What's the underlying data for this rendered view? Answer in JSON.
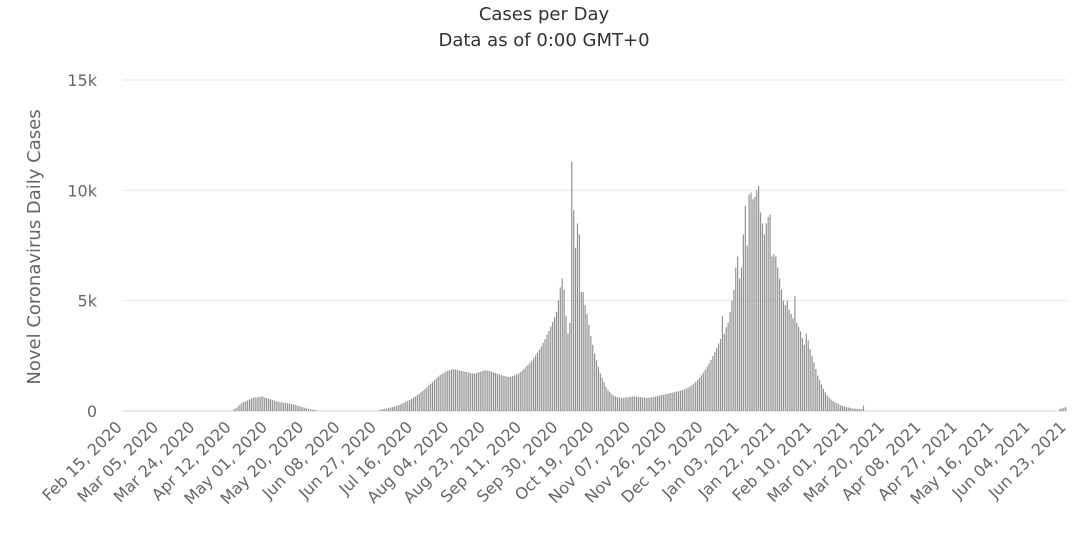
{
  "chart_data": {
    "type": "bar",
    "title": "Cases per Day",
    "subtitle": "Data as of 0:00 GMT+0",
    "ylabel": "Novel Coronavirus Daily Cases",
    "xlabel": "",
    "ylim": [
      0,
      15000
    ],
    "yticks": [
      "0",
      "5k",
      "10k",
      "15k"
    ],
    "ytick_values": [
      0,
      5000,
      10000,
      15000
    ],
    "x_start": "2020-02-15",
    "x_end": "2021-06-23",
    "xticks": [
      "Feb 15, 2020",
      "Mar 05, 2020",
      "Mar 24, 2020",
      "Apr 12, 2020",
      "May 01, 2020",
      "May 20, 2020",
      "Jun 08, 2020",
      "Jun 27, 2020",
      "Jul 16, 2020",
      "Aug 04, 2020",
      "Aug 23, 2020",
      "Sep 11, 2020",
      "Sep 30, 2020",
      "Oct 19, 2020",
      "Nov 07, 2020",
      "Nov 26, 2020",
      "Dec 15, 2020",
      "Jan 03, 2021",
      "Jan 22, 2021",
      "Feb 10, 2021",
      "Mar 01, 2021",
      "Mar 20, 2021",
      "Apr 08, 2021",
      "Apr 27, 2021",
      "May 16, 2021",
      "Jun 04, 2021",
      "Jun 23, 2021"
    ],
    "grid": true,
    "legend": "none",
    "bar_color": "#909090",
    "series": [
      {
        "values": [
          0,
          0,
          0,
          0,
          0,
          0,
          0,
          0,
          0,
          0,
          0,
          0,
          0,
          0,
          0,
          0,
          0,
          0,
          0,
          0,
          0,
          0,
          0,
          0,
          0,
          0,
          0,
          0,
          0,
          0,
          0,
          0,
          0,
          0,
          0,
          0,
          0,
          0,
          0,
          0,
          0,
          0,
          0,
          0,
          0,
          0,
          0,
          0,
          0,
          0,
          0,
          0,
          0,
          0,
          0,
          0,
          0,
          0,
          90,
          130,
          210,
          280,
          360,
          410,
          440,
          480,
          520,
          560,
          600,
          620,
          610,
          640,
          650,
          660,
          600,
          590,
          560,
          540,
          500,
          470,
          440,
          420,
          400,
          390,
          380,
          360,
          350,
          340,
          320,
          300,
          280,
          250,
          220,
          200,
          180,
          150,
          120,
          100,
          80,
          60,
          40,
          30,
          0,
          0,
          0,
          0,
          0,
          0,
          0,
          0,
          0,
          0,
          0,
          0,
          0,
          0,
          0,
          0,
          0,
          0,
          0,
          0,
          0,
          0,
          0,
          0,
          0,
          0,
          0,
          0,
          0,
          0,
          0,
          0,
          30,
          60,
          90,
          100,
          120,
          140,
          160,
          180,
          200,
          230,
          260,
          300,
          340,
          380,
          420,
          460,
          500,
          550,
          600,
          660,
          720,
          780,
          850,
          920,
          1000,
          1080,
          1160,
          1240,
          1320,
          1400,
          1480,
          1560,
          1620,
          1680,
          1740,
          1790,
          1830,
          1860,
          1880,
          1890,
          1880,
          1860,
          1840,
          1820,
          1800,
          1780,
          1760,
          1740,
          1720,
          1700,
          1700,
          1720,
          1750,
          1780,
          1810,
          1830,
          1840,
          1830,
          1810,
          1780,
          1750,
          1720,
          1690,
          1660,
          1630,
          1600,
          1580,
          1560,
          1550,
          1560,
          1580,
          1610,
          1650,
          1700,
          1760,
          1830,
          1910,
          2000,
          2090,
          2180,
          2280,
          2390,
          2510,
          2640,
          2780,
          2930,
          3090,
          3260,
          3440,
          3630,
          3830,
          4040,
          4260,
          4500,
          5000,
          5600,
          6000,
          5500,
          4300,
          3500,
          4000,
          11300,
          9100,
          7400,
          8500,
          8000,
          5400,
          5400,
          4800,
          4400,
          3900,
          3400,
          3000,
          2600,
          2300,
          2000,
          1700,
          1500,
          1300,
          1100,
          950,
          850,
          760,
          700,
          660,
          630,
          610,
          600,
          600,
          610,
          620,
          640,
          650,
          660,
          660,
          650,
          640,
          630,
          620,
          610,
          600,
          600,
          610,
          620,
          640,
          660,
          680,
          700,
          720,
          740,
          760,
          780,
          800,
          820,
          840,
          860,
          880,
          900,
          920,
          950,
          980,
          1020,
          1060,
          1110,
          1170,
          1240,
          1320,
          1410,
          1510,
          1620,
          1740,
          1870,
          2010,
          2160,
          2320,
          2490,
          2670,
          2860,
          3060,
          3270,
          4300,
          3500,
          3800,
          4000,
          4500,
          5000,
          5500,
          6500,
          7000,
          6000,
          6500,
          8000,
          9300,
          7500,
          9800,
          9900,
          9600,
          9700,
          10000,
          10200,
          9000,
          8500,
          8000,
          8500,
          8800,
          8900,
          7000,
          7100,
          7000,
          6500,
          6000,
          5500,
          5000,
          4800,
          5000,
          4600,
          4400,
          4200,
          5200,
          4000,
          3800,
          3600,
          3300,
          3000,
          3500,
          3200,
          2800,
          2500,
          2200,
          1900,
          1600,
          1400,
          1200,
          1000,
          850,
          700,
          600,
          520,
          450,
          400,
          350,
          300,
          260,
          230,
          200,
          180,
          160,
          140,
          120,
          110,
          100,
          90,
          80,
          80,
          250,
          0,
          0,
          0,
          0,
          0,
          0,
          0,
          0,
          0,
          0,
          0,
          0,
          0,
          0,
          0,
          0,
          0,
          0,
          0,
          0,
          0,
          0,
          0,
          0,
          0,
          0,
          0,
          0,
          0,
          0,
          0,
          0,
          0,
          0,
          0,
          0,
          0,
          0,
          0,
          0,
          0,
          0,
          0,
          0,
          0,
          0,
          0,
          0,
          0,
          0,
          0,
          0,
          0,
          0,
          0,
          0,
          0,
          0,
          0,
          0,
          0,
          0,
          0,
          0,
          0,
          0,
          0,
          0,
          0,
          0,
          0,
          0,
          0,
          0,
          0,
          0,
          0,
          0,
          0,
          0,
          0,
          0,
          0,
          0,
          0,
          0,
          0,
          0,
          0,
          0,
          0,
          0,
          0,
          0,
          0,
          0,
          0,
          0,
          0,
          0,
          0,
          0,
          100,
          120,
          150,
          180
        ]
      }
    ]
  }
}
